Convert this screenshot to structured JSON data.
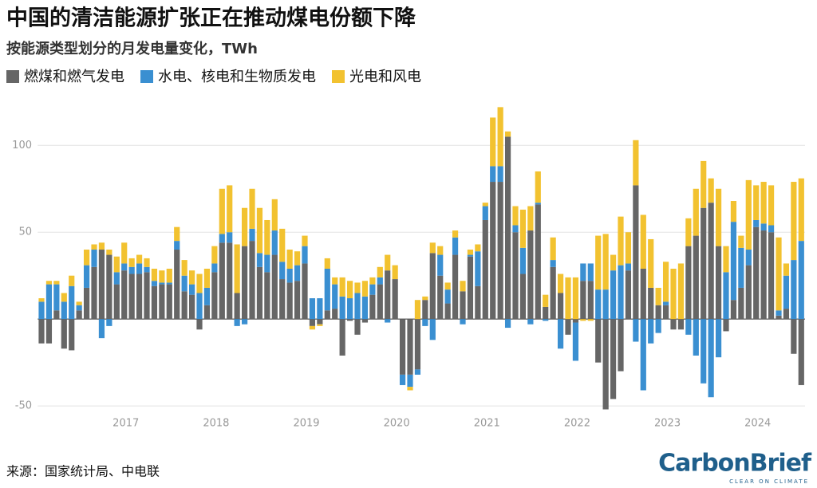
{
  "chart_data": {
    "type": "stacked_bar",
    "title": "中国的清洁能源扩张正在推动煤电份额下降",
    "subtitle": "按能源类型划分的月发电量变化，TWh",
    "source": "来源：国家统计局、中电联",
    "brand": "CarbonBrief",
    "brand_tagline": "CLEAR ON CLIMATE",
    "categories": [
      null,
      null,
      null,
      null,
      null,
      null,
      null,
      null,
      null,
      null,
      null,
      "2017",
      null,
      null,
      null,
      null,
      null,
      null,
      null,
      null,
      null,
      null,
      null,
      "2018",
      null,
      null,
      null,
      null,
      null,
      null,
      null,
      null,
      null,
      null,
      null,
      "2019",
      null,
      null,
      null,
      null,
      null,
      null,
      null,
      null,
      null,
      null,
      null,
      "2020",
      null,
      null,
      null,
      null,
      null,
      null,
      null,
      null,
      null,
      null,
      null,
      "2021",
      null,
      null,
      null,
      null,
      null,
      null,
      null,
      null,
      null,
      null,
      null,
      "2022",
      null,
      null,
      null,
      null,
      null,
      null,
      null,
      null,
      null,
      null,
      null,
      "2023",
      null,
      null,
      null,
      null,
      null,
      null,
      null,
      null,
      null,
      null,
      null,
      "2024",
      null,
      null,
      null,
      null,
      null,
      null
    ],
    "series": [
      {
        "name": "燃煤和燃气发电",
        "color": "#666666",
        "values": [
          -14,
          -14,
          5,
          -17,
          -18,
          5,
          18,
          30,
          40,
          37,
          20,
          28,
          26,
          26,
          27,
          19,
          20,
          20,
          40,
          16,
          14,
          -6,
          8,
          27,
          44,
          44,
          15,
          42,
          45,
          30,
          27,
          37,
          23,
          21,
          22,
          32,
          -4,
          -3,
          5,
          6,
          -21,
          -1,
          -9,
          -2,
          14,
          20,
          28,
          23,
          -32,
          -32,
          -29,
          11,
          38,
          25,
          9,
          37,
          16,
          36,
          19,
          57,
          79,
          79,
          105,
          50,
          26,
          51,
          66,
          7,
          30,
          15,
          -9,
          -2,
          22,
          22,
          -25,
          -52,
          -46,
          -30,
          28,
          77,
          29,
          18,
          8,
          8,
          -6,
          -6,
          42,
          48,
          64,
          67,
          42,
          -7,
          11,
          18,
          31,
          53,
          51,
          50,
          2,
          6,
          -20,
          -38
        ]
      },
      {
        "name": "水电、核电和生物质发电",
        "color": "#3a8fd1",
        "values": [
          10,
          20,
          15,
          10,
          19,
          3,
          13,
          10,
          -11,
          -4,
          7,
          4,
          4,
          6,
          3,
          3,
          1,
          1,
          5,
          9,
          6,
          15,
          10,
          5,
          5,
          6,
          -4,
          -3,
          7,
          8,
          10,
          14,
          10,
          8,
          9,
          10,
          12,
          12,
          24,
          14,
          13,
          12,
          15,
          13,
          6,
          4,
          -2,
          0,
          -6,
          -7,
          -3,
          -4,
          -12,
          12,
          8,
          10,
          -3,
          1,
          20,
          8,
          9,
          9,
          -5,
          4,
          15,
          -3,
          1,
          -1,
          4,
          -17,
          0,
          -22,
          10,
          10,
          17,
          17,
          28,
          31,
          4,
          -13,
          -41,
          -14,
          -8,
          2,
          0,
          0,
          -9,
          -21,
          -37,
          -45,
          -22,
          27,
          45,
          23,
          9,
          4,
          4,
          4,
          3,
          19,
          34,
          45
        ]
      },
      {
        "name": "光电和风电",
        "color": "#f2c230",
        "values": [
          2,
          2,
          2,
          5,
          6,
          2,
          9,
          3,
          4,
          3,
          9,
          12,
          5,
          5,
          5,
          7,
          7,
          8,
          8,
          9,
          8,
          11,
          11,
          10,
          26,
          27,
          28,
          22,
          23,
          26,
          20,
          18,
          19,
          11,
          8,
          6,
          -2,
          -1,
          6,
          4,
          11,
          10,
          6,
          9,
          4,
          6,
          9,
          8,
          0,
          -2,
          11,
          2,
          6,
          5,
          4,
          4,
          6,
          3,
          4,
          2,
          28,
          34,
          3,
          11,
          22,
          14,
          18,
          7,
          13,
          11,
          24,
          24,
          -1,
          -1,
          31,
          32,
          9,
          28,
          18,
          26,
          31,
          28,
          10,
          23,
          29,
          32,
          16,
          27,
          27,
          14,
          33,
          15,
          12,
          7,
          40,
          20,
          24,
          23,
          42,
          7,
          45,
          36
        ]
      }
    ],
    "ylim": [
      -55,
      124
    ],
    "yticks": [
      -50,
      50,
      100
    ],
    "grid": true
  }
}
